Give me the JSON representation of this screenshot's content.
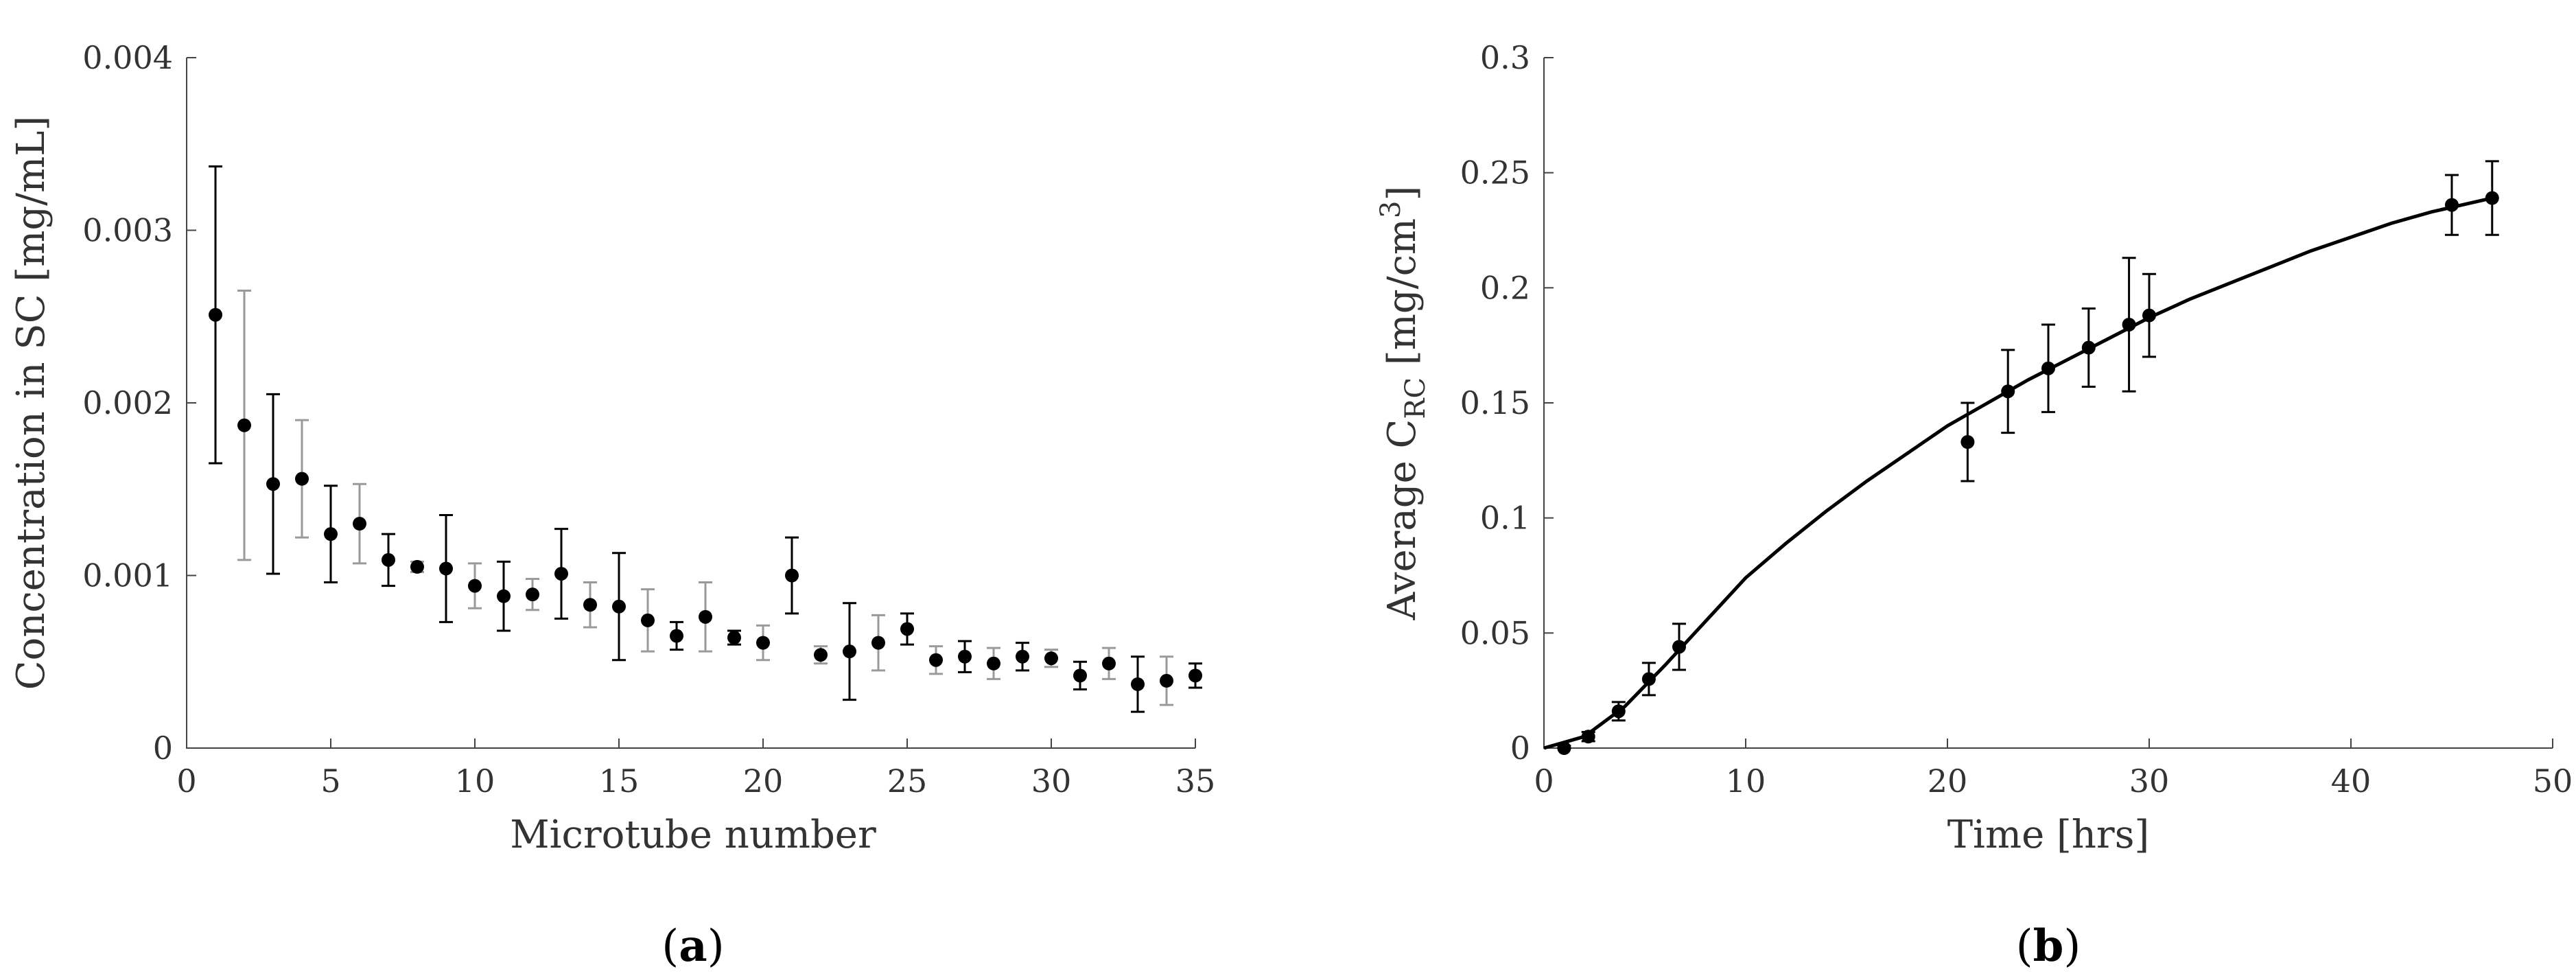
{
  "chart_data": [
    {
      "type": "scatter",
      "panel_label": "a",
      "xlabel": "Microtube number",
      "ylabel": "Concentration in SC [mg/mL]",
      "xlim": [
        0,
        35
      ],
      "ylim": [
        0,
        0.004
      ],
      "xticks": [
        "0",
        "5",
        "10",
        "15",
        "20",
        "25",
        "30",
        "35"
      ],
      "yticks": [
        "0",
        "0.001",
        "0.002",
        "0.003",
        "0.004"
      ],
      "x": [
        1,
        2,
        3,
        4,
        5,
        6,
        7,
        8,
        9,
        10,
        11,
        12,
        13,
        14,
        15,
        16,
        17,
        18,
        19,
        20,
        21,
        22,
        23,
        24,
        25,
        26,
        27,
        28,
        29,
        30,
        31,
        32,
        33,
        34,
        35
      ],
      "y": [
        0.00251,
        0.00187,
        0.00153,
        0.00156,
        0.00124,
        0.0013,
        0.00109,
        0.00105,
        0.00104,
        0.00094,
        0.00088,
        0.00089,
        0.00101,
        0.00083,
        0.00082,
        0.00074,
        0.00065,
        0.00076,
        0.00064,
        0.00061,
        0.001,
        0.00054,
        0.00056,
        0.00061,
        0.00069,
        0.00051,
        0.00053,
        0.00049,
        0.00053,
        0.00052,
        0.00042,
        0.00049,
        0.00037,
        0.00039,
        0.00042
      ],
      "err": [
        0.00086,
        0.00078,
        0.00052,
        0.00034,
        0.00028,
        0.00023,
        0.00015,
        3e-05,
        0.00031,
        0.00013,
        0.0002,
        9e-05,
        0.00026,
        0.00013,
        0.00031,
        0.00018,
        8e-05,
        0.0002,
        4e-05,
        0.0001,
        0.00022,
        5e-05,
        0.00028,
        0.00016,
        9e-05,
        8e-05,
        9e-05,
        9e-05,
        8e-05,
        5e-05,
        8e-05,
        9e-05,
        0.00016,
        0.00014,
        7e-05
      ]
    },
    {
      "type": "line",
      "panel_label": "b",
      "xlabel": "Time  [hrs]",
      "ylabel_main": "Average C",
      "ylabel_sub": "RC",
      "ylabel_units": "  [mg/cm",
      "ylabel_sup": "3",
      "ylabel_close": "]",
      "xlim": [
        0,
        50
      ],
      "ylim": [
        0,
        0.3
      ],
      "xticks": [
        "0",
        "10",
        "20",
        "30",
        "40",
        "50"
      ],
      "yticks": [
        "0",
        "0.05",
        "0.1",
        "0.15",
        "0.2",
        "0.25",
        "0.3"
      ],
      "x": [
        1,
        2.2,
        3.7,
        5.2,
        6.7,
        21,
        23,
        25,
        27,
        29,
        30,
        45,
        47
      ],
      "y": [
        0,
        0.005,
        0.016,
        0.03,
        0.044,
        0.133,
        0.155,
        0.165,
        0.174,
        0.184,
        0.188,
        0.236,
        0.239
      ],
      "err": [
        0.001,
        0.002,
        0.004,
        0.007,
        0.01,
        0.017,
        0.018,
        0.019,
        0.017,
        0.029,
        0.018,
        0.013,
        0.016
      ],
      "fit_x": [
        0,
        2,
        4,
        6,
        8,
        10,
        12,
        14,
        16,
        18,
        20,
        22,
        24,
        26,
        28,
        30,
        32,
        34,
        36,
        38,
        40,
        42,
        44,
        46,
        47
      ],
      "fit_y": [
        0,
        0.005,
        0.018,
        0.036,
        0.055,
        0.074,
        0.089,
        0.103,
        0.116,
        0.128,
        0.14,
        0.15,
        0.16,
        0.169,
        0.178,
        0.187,
        0.195,
        0.202,
        0.209,
        0.216,
        0.222,
        0.228,
        0.233,
        0.237,
        0.239
      ]
    }
  ]
}
